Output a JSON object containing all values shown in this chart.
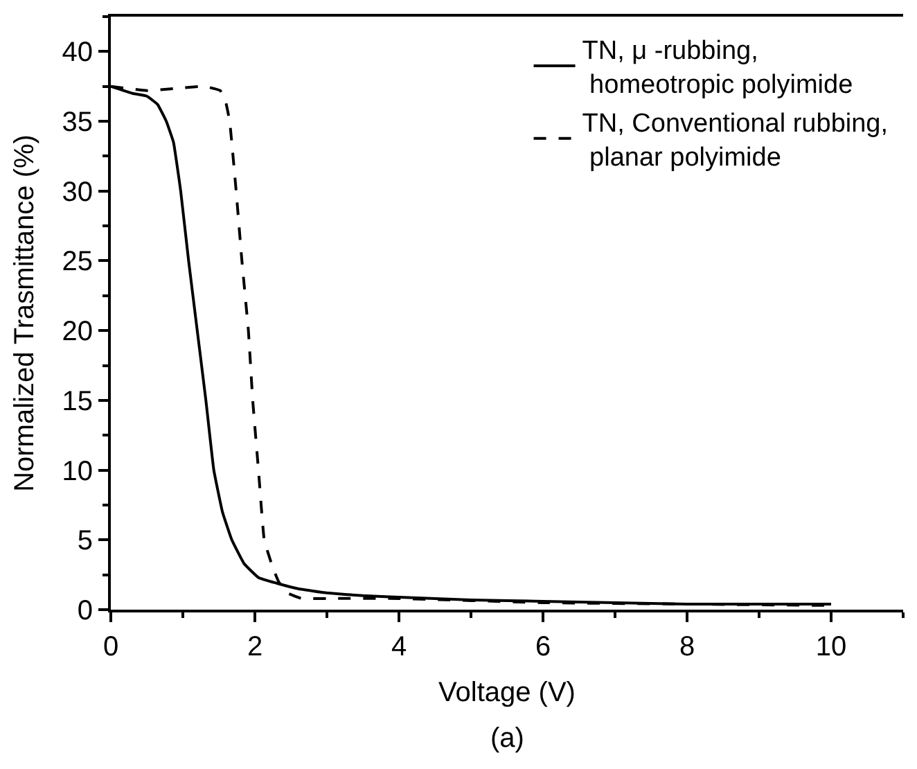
{
  "chart_data": {
    "type": "line",
    "xlabel": "Voltage (V)",
    "ylabel": "Normalized Trasmittance (%)",
    "xlim": [
      0,
      11
    ],
    "ylim": [
      0,
      42.5
    ],
    "xticks": [
      0,
      2,
      4,
      6,
      8,
      10
    ],
    "yticks": [
      0,
      5,
      10,
      15,
      20,
      25,
      30,
      35,
      40
    ],
    "legend": "top right",
    "marker": "none",
    "series": [
      {
        "name": "TN, μ -rubbing,\n homeotropic polyimide",
        "color": "#000000",
        "line_style": "solid",
        "x": [
          0,
          0.3,
          0.5,
          0.65,
          0.77,
          0.87,
          0.97,
          1.08,
          1.2,
          1.32,
          1.43,
          1.55,
          1.68,
          1.85,
          2.05,
          2.3,
          2.6,
          3,
          3.5,
          4,
          5,
          6,
          7,
          8,
          9,
          10
        ],
        "values": [
          37.5,
          37,
          36.8,
          36.2,
          35,
          33.5,
          30,
          25,
          20,
          15,
          10,
          7,
          5,
          3.3,
          2.3,
          1.9,
          1.5,
          1.2,
          1,
          0.9,
          0.7,
          0.6,
          0.5,
          0.4,
          0.4,
          0.4
        ]
      },
      {
        "name": "TN, Conventional rubbing,\n planar polyimide",
        "color": "#000000",
        "line_style": "dashed",
        "x": [
          0,
          0.5,
          1.0,
          1.3,
          1.52,
          1.59,
          1.65,
          1.74,
          1.82,
          1.91,
          1.97,
          2.05,
          2.13,
          2.25,
          2.33,
          2.45,
          2.65,
          3,
          4,
          6,
          8,
          10
        ],
        "values": [
          37.5,
          37.2,
          37.4,
          37.5,
          37.2,
          36.5,
          35,
          30,
          25,
          20,
          15,
          10,
          5,
          3,
          2,
          1.2,
          0.8,
          0.8,
          0.8,
          0.5,
          0.4,
          0.3
        ]
      }
    ],
    "annotations": [
      "(a)"
    ]
  }
}
